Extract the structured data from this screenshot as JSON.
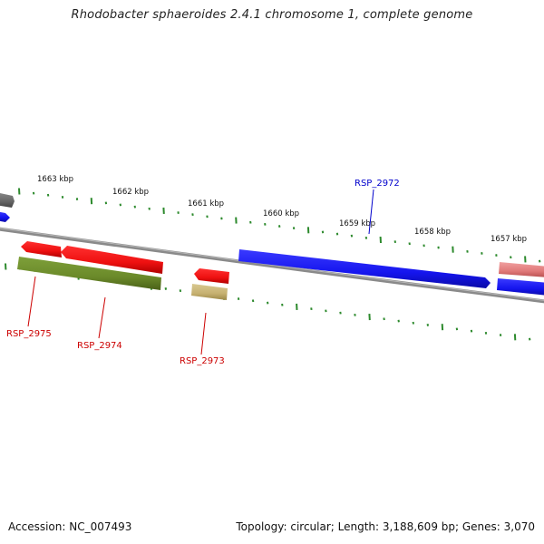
{
  "title": "Rhodobacter sphaeroides 2.4.1 chromosome 1, complete genome",
  "footer": {
    "accession": "Accession: NC_007493",
    "summary": "Topology: circular; Length: 3,188,609 bp; Genes: 3,070"
  },
  "colors": {
    "forward_cds": "#1a1aff",
    "reverse_cds": "#ee1111",
    "reverse_rna": "#6b8e23",
    "reverse_rna_light": "#c8b46e",
    "pink_feature": "#e88080",
    "gray_feature": "#666666",
    "backbone": "#8a8a8a",
    "ticks": "#2d8a2d",
    "forward_label": "#0000cc",
    "reverse_label": "#cc0000"
  },
  "scale_labels": [
    "1663 kbp",
    "1662 kbp",
    "1661 kbp",
    "1660 kbp",
    "1659 kbp",
    "1658 kbp",
    "1657 kbp"
  ],
  "gene_labels": [
    {
      "text": "RSP_2972",
      "strand": "forward"
    },
    {
      "text": "RSP_2975",
      "strand": "reverse"
    },
    {
      "text": "RSP_2974",
      "strand": "reverse"
    },
    {
      "text": "RSP_2973",
      "strand": "reverse"
    }
  ]
}
